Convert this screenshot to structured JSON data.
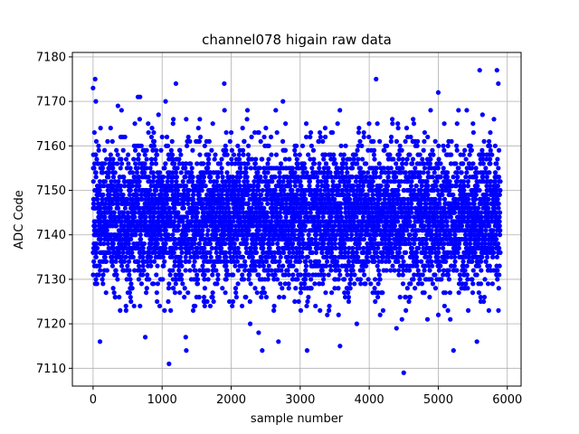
{
  "chart_data": {
    "type": "scatter",
    "title": "channel078 higain raw data",
    "xlabel": "sample number",
    "ylabel": "ADC Code",
    "xlim": [
      -300,
      6200
    ],
    "ylim": [
      7106,
      7181
    ],
    "xticks": [
      0,
      1000,
      2000,
      3000,
      4000,
      5000,
      6000
    ],
    "yticks": [
      7110,
      7120,
      7130,
      7140,
      7150,
      7160,
      7170,
      7180
    ],
    "grid": true,
    "marker_color": "#0000ff",
    "n_points": 5900,
    "baseline": 7144,
    "sigma": 8,
    "outliers": [
      {
        "x": 0,
        "y": 7173
      },
      {
        "x": 30,
        "y": 7175
      },
      {
        "x": 40,
        "y": 7170
      },
      {
        "x": 360,
        "y": 7169
      },
      {
        "x": 650,
        "y": 7171
      },
      {
        "x": 680,
        "y": 7171
      },
      {
        "x": 1050,
        "y": 7170
      },
      {
        "x": 1100,
        "y": 7111
      },
      {
        "x": 1200,
        "y": 7174
      },
      {
        "x": 1900,
        "y": 7174
      },
      {
        "x": 2750,
        "y": 7170
      },
      {
        "x": 3100,
        "y": 7114
      },
      {
        "x": 4100,
        "y": 7175
      },
      {
        "x": 4500,
        "y": 7109
      },
      {
        "x": 5000,
        "y": 7172
      },
      {
        "x": 5600,
        "y": 7177
      },
      {
        "x": 5850,
        "y": 7177
      },
      {
        "x": 5870,
        "y": 7174
      },
      {
        "x": 2450,
        "y": 7114
      },
      {
        "x": 1350,
        "y": 7114
      },
      {
        "x": 100,
        "y": 7116
      },
      {
        "x": 5560,
        "y": 7116
      }
    ]
  }
}
